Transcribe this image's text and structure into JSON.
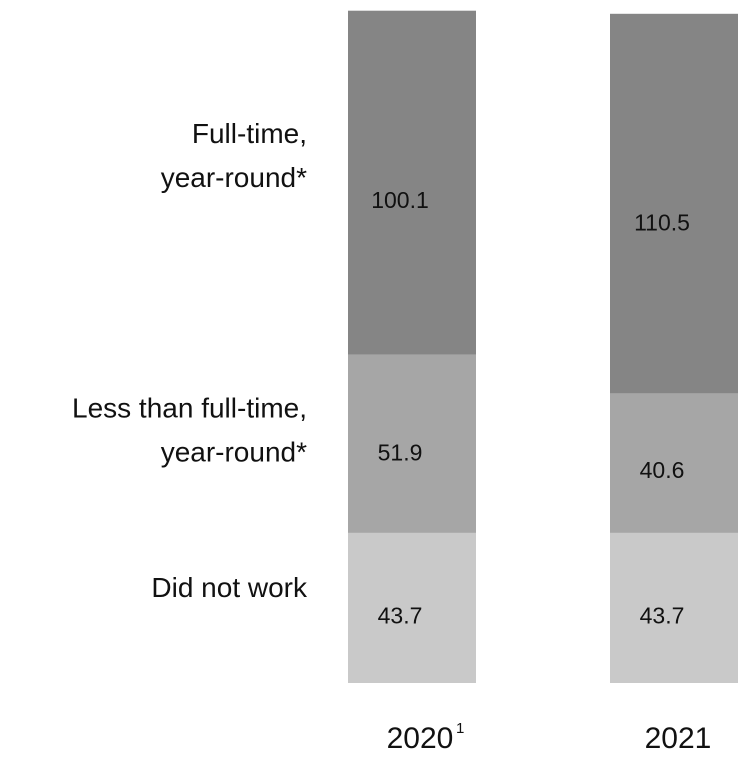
{
  "chart_data": {
    "type": "bar",
    "stacked": true,
    "categories": [
      "2020",
      "2021"
    ],
    "category_superscripts": [
      "1",
      ""
    ],
    "series": [
      {
        "name": "Did not work",
        "label_lines": [
          "Did not work"
        ],
        "color": "#c9c9c9",
        "values": [
          43.7,
          43.7
        ],
        "value_labels": [
          "43.7",
          "43.7"
        ]
      },
      {
        "name": "Less than full-time, year-round*",
        "label_lines": [
          "Less than full-time,",
          "year-round*"
        ],
        "color": "#a6a6a6",
        "values": [
          51.9,
          40.6
        ],
        "value_labels": [
          "51.9",
          "40.6"
        ]
      },
      {
        "name": "Full-time, year-round*",
        "label_lines": [
          "Full-time,",
          "year-round*"
        ],
        "color": "#858585",
        "values": [
          100.1,
          110.5
        ],
        "value_labels": [
          "100.1",
          "110.5"
        ]
      }
    ],
    "grid": false,
    "legend": "left"
  }
}
